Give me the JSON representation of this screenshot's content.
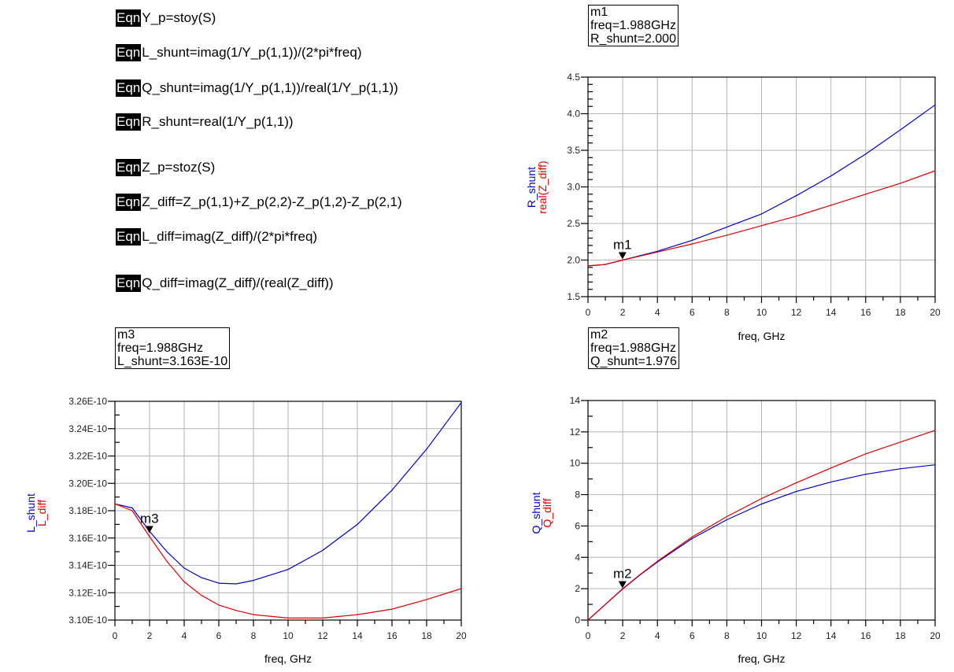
{
  "equations": [
    {
      "tag": "Eqn",
      "expr": "Y_p=stoy(S)"
    },
    {
      "tag": "Eqn",
      "expr": "L_shunt=imag(1/Y_p(1,1))/(2*pi*freq)"
    },
    {
      "tag": "Eqn",
      "expr": "Q_shunt=imag(1/Y_p(1,1))/real(1/Y_p(1,1))"
    },
    {
      "tag": "Eqn",
      "expr": "R_shunt=real(1/Y_p(1,1))"
    },
    {
      "tag": "Eqn",
      "expr": "Z_p=stoz(S)"
    },
    {
      "tag": "Eqn",
      "expr": "Z_diff=Z_p(1,1)+Z_p(2,2)-Z_p(1,2)-Z_p(2,1)"
    },
    {
      "tag": "Eqn",
      "expr": "L_diff=imag(Z_diff)/(2*pi*freq)"
    },
    {
      "tag": "Eqn",
      "expr": "Q_diff=imag(Z_diff)/(real(Z_diff))"
    }
  ],
  "colors": {
    "series1": "#0000cc",
    "series2": "#dd0000",
    "grid": "#b4b4b4",
    "axis": "#000000"
  },
  "chart_data": [
    {
      "id": "r",
      "type": "line",
      "xlabel": "freq, GHz",
      "ylabels": [
        "R_shunt",
        "real(Z_diff)"
      ],
      "xlim": [
        0,
        20
      ],
      "ylim": [
        1.5,
        4.5
      ],
      "xticks": [
        0,
        2,
        4,
        6,
        8,
        10,
        12,
        14,
        16,
        18,
        20
      ],
      "xtick_labels": [
        "0",
        "2",
        "4",
        "6",
        "8",
        "10",
        "12",
        "14",
        "16",
        "18",
        "20"
      ],
      "yticks": [
        1.5,
        2.0,
        2.5,
        3.0,
        3.5,
        4.0,
        4.5
      ],
      "ytick_labels": [
        "1.5",
        "2.0",
        "2.5",
        "3.0",
        "3.5",
        "4.0",
        "4.5"
      ],
      "grid": true,
      "x": [
        0,
        1,
        2,
        4,
        6,
        8,
        10,
        12,
        14,
        16,
        18,
        20
      ],
      "series": [
        {
          "name": "R_shunt",
          "color": "#0000cc",
          "values": [
            1.92,
            1.94,
            2.0,
            2.12,
            2.27,
            2.45,
            2.63,
            2.88,
            3.15,
            3.45,
            3.78,
            4.12
          ]
        },
        {
          "name": "real(Z_diff)",
          "color": "#dd0000",
          "values": [
            1.92,
            1.94,
            2.0,
            2.11,
            2.22,
            2.34,
            2.47,
            2.6,
            2.75,
            2.9,
            3.05,
            3.22
          ]
        }
      ],
      "marker": {
        "name": "m1",
        "x": 1.988,
        "y": 2.0,
        "lines": [
          "m1",
          "freq=1.988GHz",
          "R_shunt=2.000"
        ]
      }
    },
    {
      "id": "l",
      "type": "line",
      "xlabel": "freq, GHz",
      "ylabels": [
        "L_shunt",
        "L_diff"
      ],
      "xlim": [
        0,
        20
      ],
      "ylim": [
        3.1e-10,
        3.26e-10
      ],
      "xticks": [
        0,
        2,
        4,
        6,
        8,
        10,
        12,
        14,
        16,
        18,
        20
      ],
      "xtick_labels": [
        "0",
        "2",
        "4",
        "6",
        "8",
        "10",
        "12",
        "14",
        "16",
        "18",
        "20"
      ],
      "yticks": [
        3.1e-10,
        3.12e-10,
        3.14e-10,
        3.16e-10,
        3.18e-10,
        3.2e-10,
        3.22e-10,
        3.24e-10,
        3.26e-10
      ],
      "ytick_labels": [
        "3.10E-10",
        "3.12E-10",
        "3.14E-10",
        "3.16E-10",
        "3.18E-10",
        "3.20E-10",
        "3.22E-10",
        "3.24E-10",
        "3.26E-10"
      ],
      "grid": true,
      "x": [
        0,
        1,
        2,
        3,
        4,
        5,
        6,
        7,
        8,
        10,
        12,
        14,
        16,
        18,
        20
      ],
      "series": [
        {
          "name": "L_shunt",
          "color": "#0000cc",
          "values": [
            3.185e-10,
            3.182e-10,
            3.165e-10,
            3.15e-10,
            3.138e-10,
            3.131e-10,
            3.127e-10,
            3.1265e-10,
            3.129e-10,
            3.137e-10,
            3.151e-10,
            3.17e-10,
            3.195e-10,
            3.225e-10,
            3.259e-10
          ]
        },
        {
          "name": "L_diff",
          "color": "#dd0000",
          "values": [
            3.185e-10,
            3.18e-10,
            3.161e-10,
            3.143e-10,
            3.128e-10,
            3.118e-10,
            3.111e-10,
            3.107e-10,
            3.104e-10,
            3.1015e-10,
            3.1015e-10,
            3.104e-10,
            3.108e-10,
            3.115e-10,
            3.123e-10
          ]
        }
      ],
      "marker": {
        "name": "m3",
        "x": 1.988,
        "y": 3.163e-10,
        "lines": [
          "m3",
          "freq=1.988GHz",
          "L_shunt=3.163E-10"
        ]
      }
    },
    {
      "id": "q",
      "type": "line",
      "xlabel": "freq, GHz",
      "ylabels": [
        "Q_shunt",
        "Q_diff"
      ],
      "xlim": [
        0,
        20
      ],
      "ylim": [
        0,
        14
      ],
      "xticks": [
        0,
        2,
        4,
        6,
        8,
        10,
        12,
        14,
        16,
        18,
        20
      ],
      "xtick_labels": [
        "0",
        "2",
        "4",
        "6",
        "8",
        "10",
        "12",
        "14",
        "16",
        "18",
        "20"
      ],
      "yticks": [
        0,
        2,
        4,
        6,
        8,
        10,
        12,
        14
      ],
      "ytick_labels": [
        "0",
        "2",
        "4",
        "6",
        "8",
        "10",
        "12",
        "14"
      ],
      "grid": true,
      "x": [
        0,
        1,
        2,
        3,
        4,
        6,
        8,
        10,
        12,
        14,
        16,
        18,
        20
      ],
      "series": [
        {
          "name": "Q_shunt",
          "color": "#0000cc",
          "values": [
            0,
            1.0,
            1.98,
            2.88,
            3.7,
            5.2,
            6.4,
            7.4,
            8.2,
            8.8,
            9.3,
            9.65,
            9.9
          ]
        },
        {
          "name": "Q_diff",
          "color": "#dd0000",
          "values": [
            0,
            1.0,
            2.0,
            2.9,
            3.75,
            5.3,
            6.6,
            7.75,
            8.75,
            9.7,
            10.6,
            11.35,
            12.1
          ]
        }
      ],
      "marker": {
        "name": "m2",
        "x": 1.988,
        "y": 1.976,
        "lines": [
          "m2",
          "freq=1.988GHz",
          "Q_shunt=1.976"
        ]
      }
    }
  ]
}
